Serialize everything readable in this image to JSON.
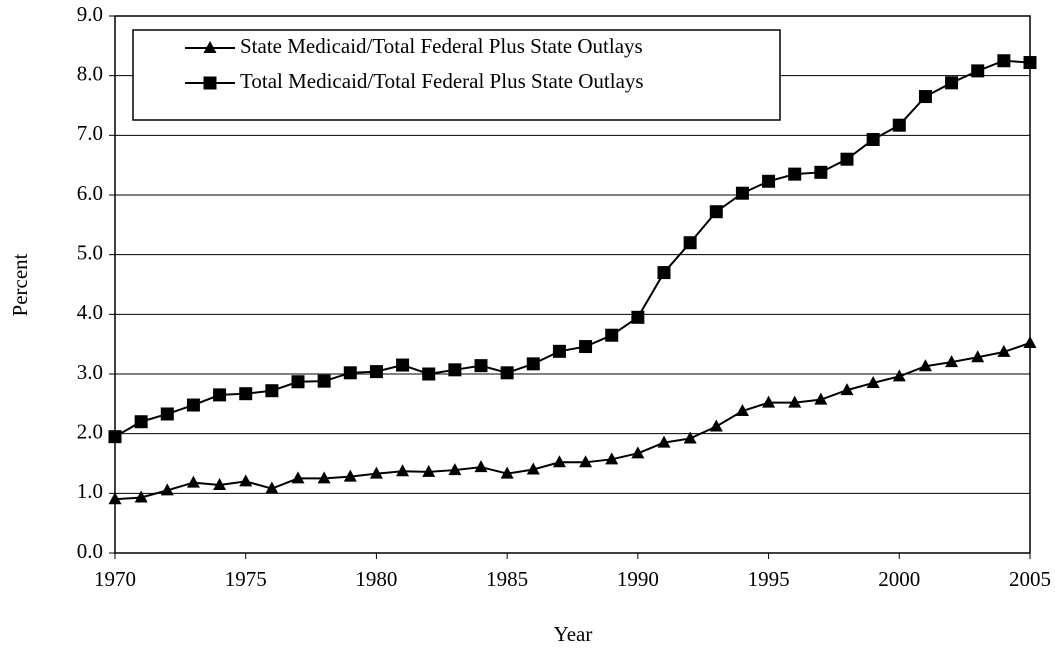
{
  "chart_data": {
    "type": "line",
    "x_label": "Year",
    "y_label": "Percent",
    "x": [
      1970,
      1971,
      1972,
      1973,
      1974,
      1975,
      1976,
      1977,
      1978,
      1979,
      1980,
      1981,
      1982,
      1983,
      1984,
      1985,
      1986,
      1987,
      1988,
      1989,
      1990,
      1991,
      1992,
      1993,
      1994,
      1995,
      1996,
      1997,
      1998,
      1999,
      2000,
      2001,
      2002,
      2003,
      2004,
      2005
    ],
    "series": [
      {
        "name": "State Medicaid/Total Federal Plus State Outlays",
        "color": "#000000",
        "marker": "triangle",
        "values": [
          0.9,
          0.93,
          1.05,
          1.18,
          1.14,
          1.2,
          1.08,
          1.25,
          1.25,
          1.28,
          1.33,
          1.37,
          1.36,
          1.39,
          1.44,
          1.33,
          1.4,
          1.52,
          1.52,
          1.57,
          1.67,
          1.85,
          1.92,
          2.12,
          2.38,
          2.52,
          2.52,
          2.57,
          2.73,
          2.85,
          2.96,
          3.13,
          3.2,
          3.28,
          3.37,
          3.52
        ]
      },
      {
        "name": "Total Medicaid/Total Federal Plus State Outlays",
        "color": "#000000",
        "marker": "square",
        "values": [
          1.95,
          2.2,
          2.33,
          2.48,
          2.65,
          2.67,
          2.72,
          2.87,
          2.88,
          3.02,
          3.04,
          3.15,
          3.0,
          3.07,
          3.14,
          3.02,
          3.17,
          3.38,
          3.46,
          3.65,
          3.95,
          4.7,
          5.2,
          5.72,
          6.03,
          6.23,
          6.35,
          6.38,
          6.6,
          6.93,
          7.17,
          7.65,
          7.88,
          8.08,
          8.25,
          8.22
        ]
      }
    ],
    "xlim": [
      1970,
      2005
    ],
    "xticks": [
      1970,
      1975,
      1980,
      1985,
      1990,
      1995,
      2000,
      2005
    ],
    "ylim": [
      0,
      9
    ],
    "yticks": [
      {
        "value": 0,
        "label": "0.0"
      },
      {
        "value": 1,
        "label": "1.0"
      },
      {
        "value": 2,
        "label": "2.0"
      },
      {
        "value": 3,
        "label": "3.0"
      },
      {
        "value": 4,
        "label": "4.0"
      },
      {
        "value": 5,
        "label": "5.0"
      },
      {
        "value": 6,
        "label": "6.0"
      },
      {
        "value": 7,
        "label": "7.0"
      },
      {
        "value": 8,
        "label": "8.0"
      },
      {
        "value": 9,
        "label": "9.0"
      }
    ],
    "grid": true,
    "legend": "upper left"
  }
}
